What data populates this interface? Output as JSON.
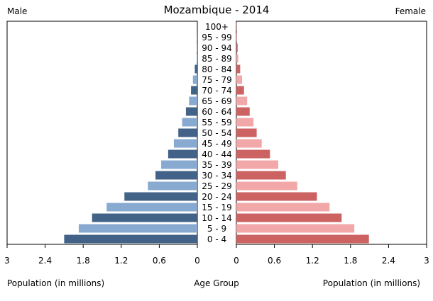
{
  "chart_data": {
    "type": "bar",
    "title": "Mozambique - 2014",
    "left_label": "Male",
    "right_label": "Female",
    "xlabel_left": "Population (in millions)",
    "xlabel_center": "Age Group",
    "xlabel_right": "Population (in millions)",
    "xlim": [
      0,
      3
    ],
    "ticks": [
      "0",
      "0.6",
      "1.2",
      "1.8",
      "2.4",
      "3"
    ],
    "tick_values": [
      0,
      0.6,
      1.2,
      1.8,
      2.4,
      3
    ],
    "categories": [
      "0 - 4",
      "5 - 9",
      "10 - 14",
      "15 - 19",
      "20 - 24",
      "25 - 29",
      "30 - 34",
      "35 - 39",
      "40 - 44",
      "45 - 49",
      "50 - 54",
      "55 - 59",
      "60 - 64",
      "65 - 69",
      "70 - 74",
      "75 - 79",
      "80 - 84",
      "85 - 89",
      "90 - 94",
      "95 - 99",
      "100+"
    ],
    "series": [
      {
        "name": "Male",
        "values": [
          2.1,
          1.87,
          1.66,
          1.43,
          1.15,
          0.78,
          0.66,
          0.57,
          0.46,
          0.37,
          0.3,
          0.24,
          0.18,
          0.13,
          0.1,
          0.07,
          0.04,
          0.01,
          0.005,
          0.002,
          0.001
        ],
        "colors": [
          "#426387",
          "#88a9d0"
        ]
      },
      {
        "name": "Female",
        "values": [
          2.09,
          1.86,
          1.66,
          1.47,
          1.27,
          0.96,
          0.78,
          0.66,
          0.53,
          0.4,
          0.32,
          0.27,
          0.21,
          0.17,
          0.12,
          0.09,
          0.06,
          0.03,
          0.02,
          0.01,
          0.005
        ],
        "colors": [
          "#cc6262",
          "#f2a8a8"
        ]
      }
    ]
  }
}
